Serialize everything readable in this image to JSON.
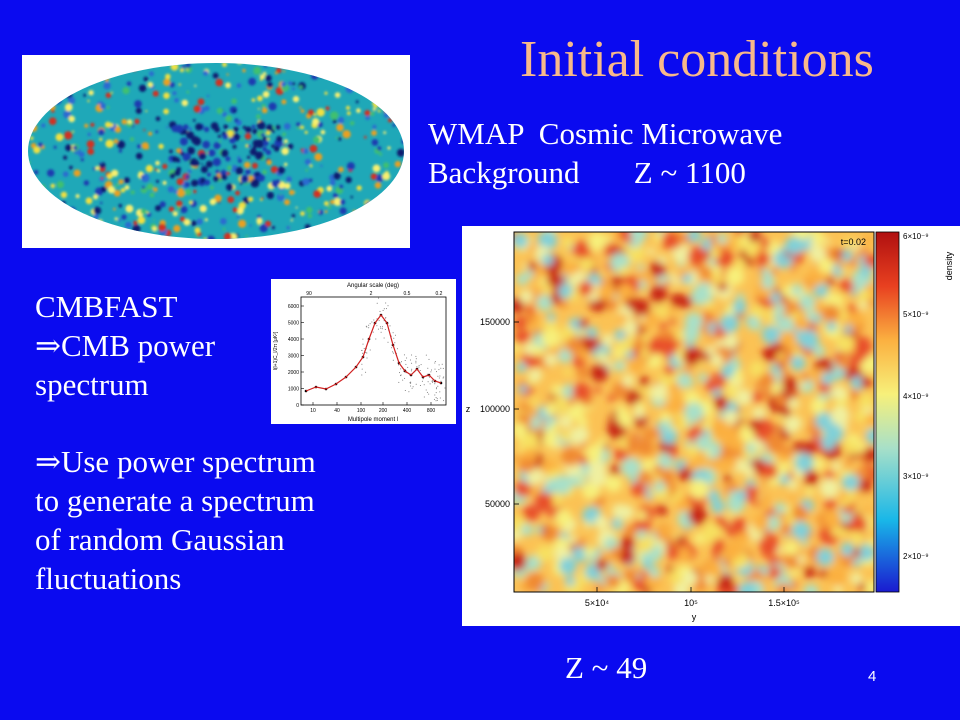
{
  "slide": {
    "title": "Initial conditions",
    "page_number": "4",
    "background_color": "#0a0af0",
    "title_color": "#f7b98a"
  },
  "wmap": {
    "image": "wmap-cmb-all-sky-map",
    "caption_line1": "WMAP  Cosmic Microwave",
    "caption_line2": "Background       Z ~ 1100"
  },
  "cmbfast": {
    "lines": [
      "CMBFAST",
      "CMB power",
      "spectrum"
    ],
    "implies_symbol": "⇒",
    "lines2": [
      "Use power spectrum",
      "to generate a spectrum",
      "of random Gaussian",
      "fluctuations"
    ]
  },
  "spectrum_plot": {
    "top_axis_label": "Angular scale (deg)",
    "top_ticks": [
      "90",
      "2",
      "0.5",
      "0.2"
    ],
    "y_ticks": [
      "6000",
      "5000",
      "4000",
      "3000",
      "2000",
      "1000",
      "0"
    ],
    "x_ticks": [
      "10",
      "40",
      "100",
      "200",
      "400",
      "800"
    ],
    "x_label": "Multipole moment l",
    "y_label": "l(l+1)C_l/2π [μK²]"
  },
  "density_panel": {
    "time_label": "t=0.02",
    "x_axis": "y",
    "y_axis": "z",
    "x_ticks": [
      "5×10⁴",
      "10⁵",
      "1.5×10⁵"
    ],
    "y_ticks": [
      "150000",
      "100000",
      "50000"
    ],
    "colorbar_label": "density",
    "colorbar_ticks": [
      "6×10⁻⁹",
      "5×10⁻⁹",
      "4×10⁻⁹",
      "3×10⁻⁹",
      "2×10⁻⁹"
    ]
  },
  "redshift_label": "Z ~ 49"
}
